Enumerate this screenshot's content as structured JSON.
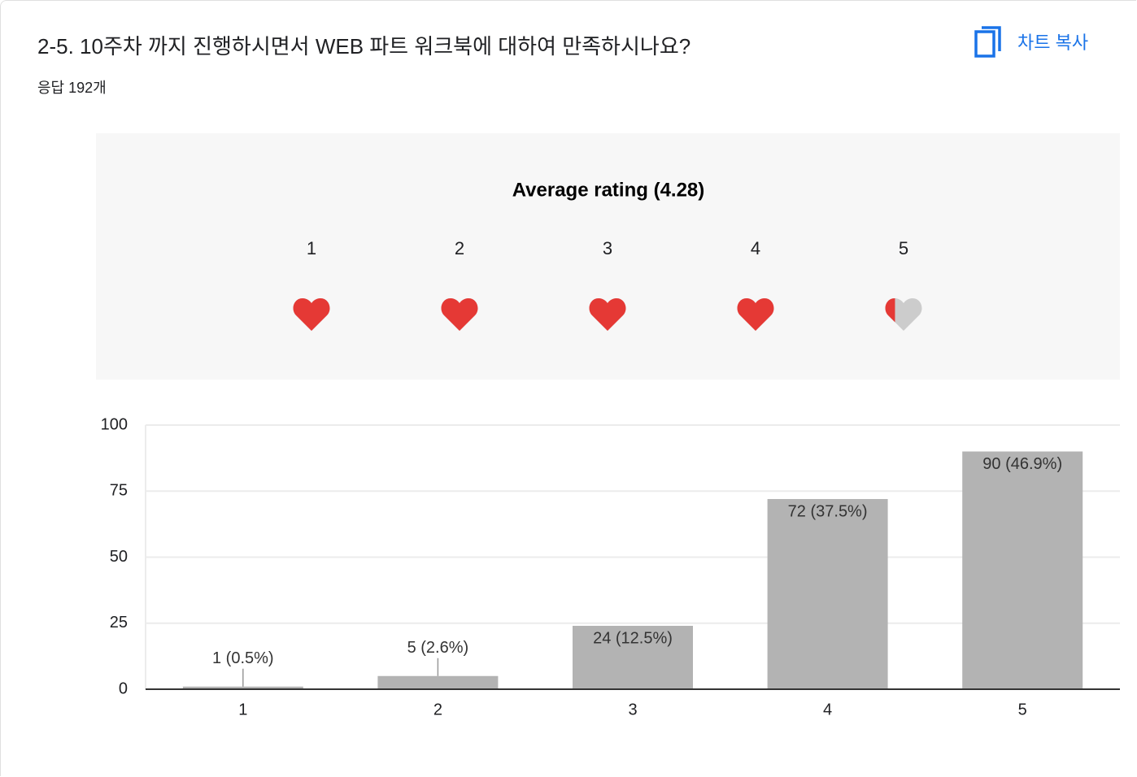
{
  "header": {
    "title": "2-5. 10주차 까지 진행하시면서 WEB 파트 워크북에 대하여 만족하시나요?",
    "responses": "응답 192개",
    "copy_button": "차트 복사"
  },
  "rating": {
    "title": "Average rating (4.28)",
    "average": 4.28,
    "scale": [
      "1",
      "2",
      "3",
      "4",
      "5"
    ],
    "filled_color": "#e53935",
    "empty_color": "#cccccc"
  },
  "chart_data": {
    "type": "bar",
    "categories": [
      "1",
      "2",
      "3",
      "4",
      "5"
    ],
    "values": [
      1,
      5,
      24,
      72,
      90
    ],
    "value_labels": [
      "1 (0.5%)",
      "5 (2.6%)",
      "24 (12.5%)",
      "72 (37.5%)",
      "90 (46.9%)"
    ],
    "color": "#b3b3b3",
    "ylim": [
      0,
      100
    ],
    "yticks": [
      0,
      25,
      50,
      75,
      100
    ],
    "grid": true
  }
}
